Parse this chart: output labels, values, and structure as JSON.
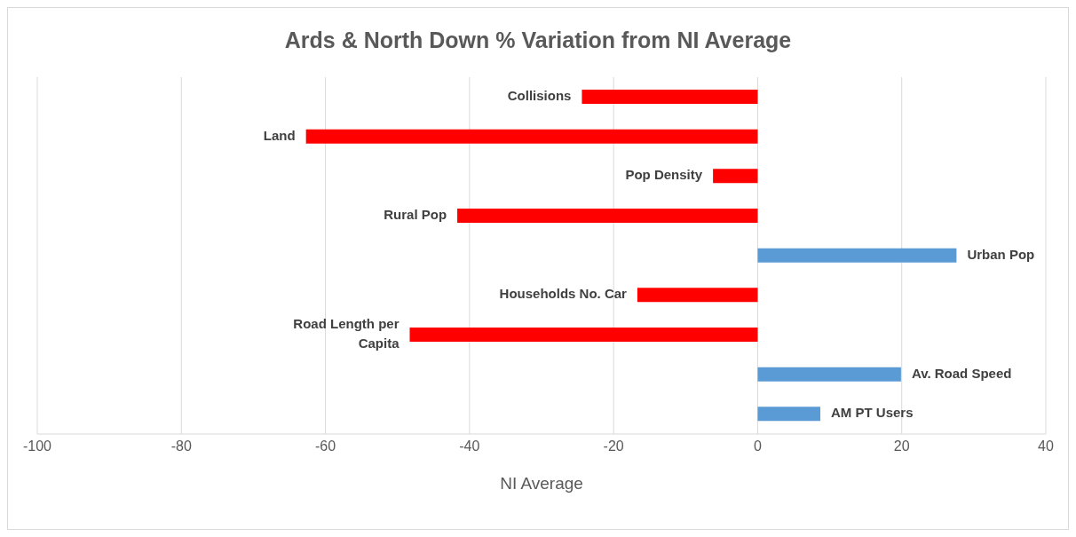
{
  "chart_data": {
    "type": "bar",
    "orientation": "horizontal",
    "title": "Ards & North Down %  Variation from NI Average",
    "xlabel": "NI Average",
    "categories": [
      "Collisions",
      "Land",
      "Pop Density",
      "Rural Pop",
      "Urban Pop",
      "Households No. Car",
      "Road Length per Capita",
      "Av. Road Speed",
      "AM PT Users"
    ],
    "values": [
      -24.4,
      -62.7,
      -6.2,
      -41.7,
      27.6,
      -16.7,
      -48.3,
      19.9,
      8.7
    ],
    "colors": [
      "#ff0000",
      "#ff0000",
      "#ff0000",
      "#ff0000",
      "#5b9bd5",
      "#ff0000",
      "#ff0000",
      "#5b9bd5",
      "#5b9bd5"
    ],
    "xlim": [
      -100,
      40
    ],
    "xticks": [
      -100,
      -80,
      -60,
      -40,
      -20,
      0,
      20,
      40
    ],
    "grid": "x",
    "legend": false
  }
}
